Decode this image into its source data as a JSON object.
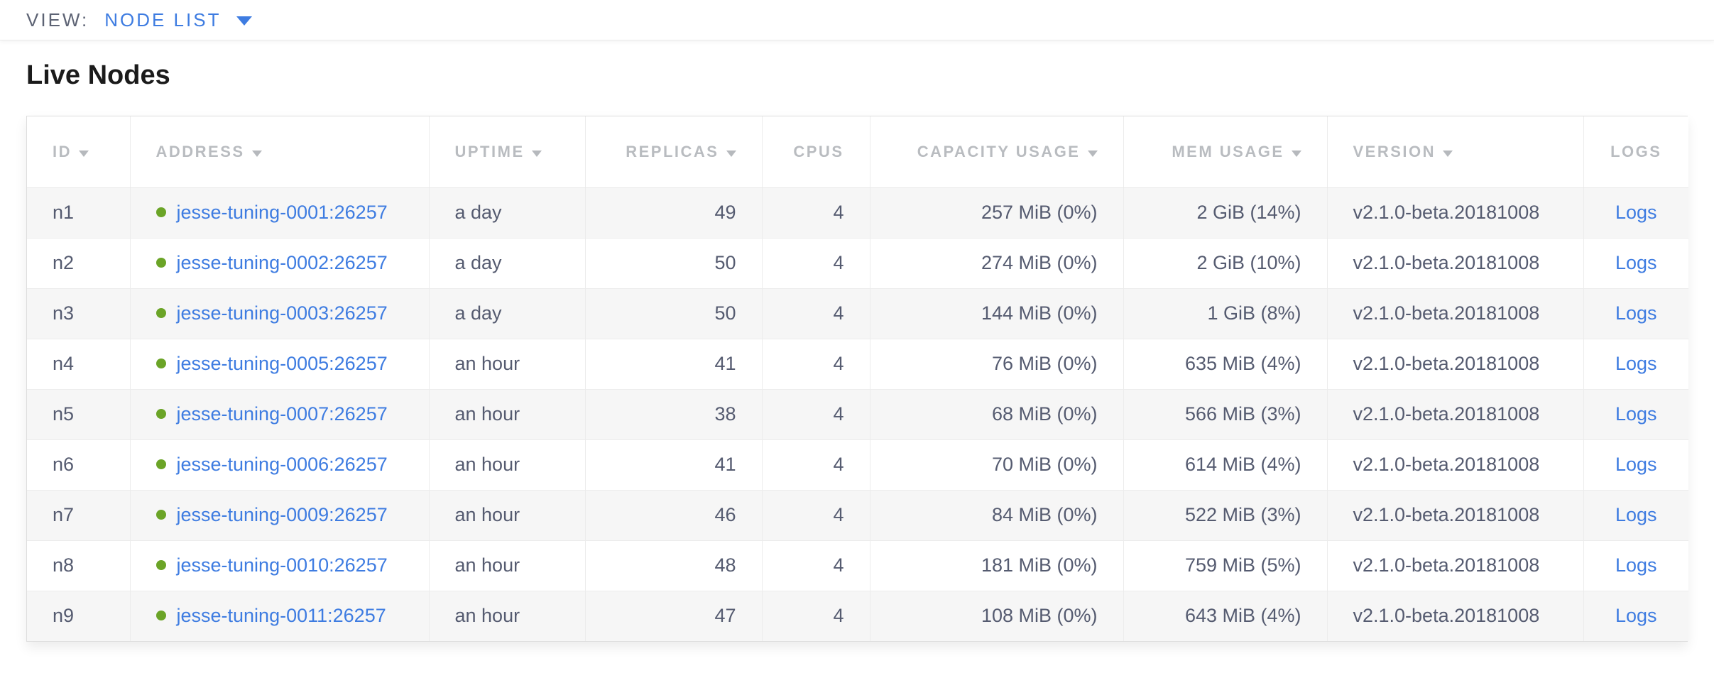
{
  "view_bar": {
    "label": "VIEW:",
    "selected_view": "NODE LIST"
  },
  "page": {
    "title": "Live Nodes"
  },
  "icons": {
    "dropdown_caret": "▾",
    "sort_indicator": "▾",
    "node_status_dot": "●"
  },
  "colors": {
    "accent_blue": "#3e7ce1",
    "live_green": "#6ba427",
    "header_text": "#b9bcc0",
    "cell_text": "#555b70",
    "row_stripe": "#f6f6f6"
  },
  "table": {
    "columns": [
      {
        "key": "id",
        "label": "ID",
        "sortable": true,
        "align": "left"
      },
      {
        "key": "address",
        "label": "ADDRESS",
        "sortable": true,
        "align": "left"
      },
      {
        "key": "uptime",
        "label": "UPTIME",
        "sortable": true,
        "align": "left"
      },
      {
        "key": "replicas",
        "label": "REPLICAS",
        "sortable": true,
        "align": "right"
      },
      {
        "key": "cpus",
        "label": "CPUS",
        "sortable": false,
        "align": "right"
      },
      {
        "key": "capacity",
        "label": "CAPACITY USAGE",
        "sortable": true,
        "align": "right"
      },
      {
        "key": "mem",
        "label": "MEM USAGE",
        "sortable": true,
        "align": "right"
      },
      {
        "key": "version",
        "label": "VERSION",
        "sortable": true,
        "align": "left"
      },
      {
        "key": "logs",
        "label": "LOGS",
        "sortable": false,
        "align": "center"
      }
    ],
    "rows": [
      {
        "id": "n1",
        "address": "jesse-tuning-0001:26257",
        "status": "live",
        "uptime": "a day",
        "replicas": "49",
        "cpus": "4",
        "capacity": "257 MiB (0%)",
        "mem": "2 GiB (14%)",
        "version": "v2.1.0-beta.20181008",
        "logs": "Logs"
      },
      {
        "id": "n2",
        "address": "jesse-tuning-0002:26257",
        "status": "live",
        "uptime": "a day",
        "replicas": "50",
        "cpus": "4",
        "capacity": "274 MiB (0%)",
        "mem": "2 GiB (10%)",
        "version": "v2.1.0-beta.20181008",
        "logs": "Logs"
      },
      {
        "id": "n3",
        "address": "jesse-tuning-0003:26257",
        "status": "live",
        "uptime": "a day",
        "replicas": "50",
        "cpus": "4",
        "capacity": "144 MiB (0%)",
        "mem": "1 GiB (8%)",
        "version": "v2.1.0-beta.20181008",
        "logs": "Logs"
      },
      {
        "id": "n4",
        "address": "jesse-tuning-0005:26257",
        "status": "live",
        "uptime": "an hour",
        "replicas": "41",
        "cpus": "4",
        "capacity": "76 MiB (0%)",
        "mem": "635 MiB (4%)",
        "version": "v2.1.0-beta.20181008",
        "logs": "Logs"
      },
      {
        "id": "n5",
        "address": "jesse-tuning-0007:26257",
        "status": "live",
        "uptime": "an hour",
        "replicas": "38",
        "cpus": "4",
        "capacity": "68 MiB (0%)",
        "mem": "566 MiB (3%)",
        "version": "v2.1.0-beta.20181008",
        "logs": "Logs"
      },
      {
        "id": "n6",
        "address": "jesse-tuning-0006:26257",
        "status": "live",
        "uptime": "an hour",
        "replicas": "41",
        "cpus": "4",
        "capacity": "70 MiB (0%)",
        "mem": "614 MiB (4%)",
        "version": "v2.1.0-beta.20181008",
        "logs": "Logs"
      },
      {
        "id": "n7",
        "address": "jesse-tuning-0009:26257",
        "status": "live",
        "uptime": "an hour",
        "replicas": "46",
        "cpus": "4",
        "capacity": "84 MiB (0%)",
        "mem": "522 MiB (3%)",
        "version": "v2.1.0-beta.20181008",
        "logs": "Logs"
      },
      {
        "id": "n8",
        "address": "jesse-tuning-0010:26257",
        "status": "live",
        "uptime": "an hour",
        "replicas": "48",
        "cpus": "4",
        "capacity": "181 MiB (0%)",
        "mem": "759 MiB (5%)",
        "version": "v2.1.0-beta.20181008",
        "logs": "Logs"
      },
      {
        "id": "n9",
        "address": "jesse-tuning-0011:26257",
        "status": "live",
        "uptime": "an hour",
        "replicas": "47",
        "cpus": "4",
        "capacity": "108 MiB (0%)",
        "mem": "643 MiB (4%)",
        "version": "v2.1.0-beta.20181008",
        "logs": "Logs"
      }
    ]
  }
}
